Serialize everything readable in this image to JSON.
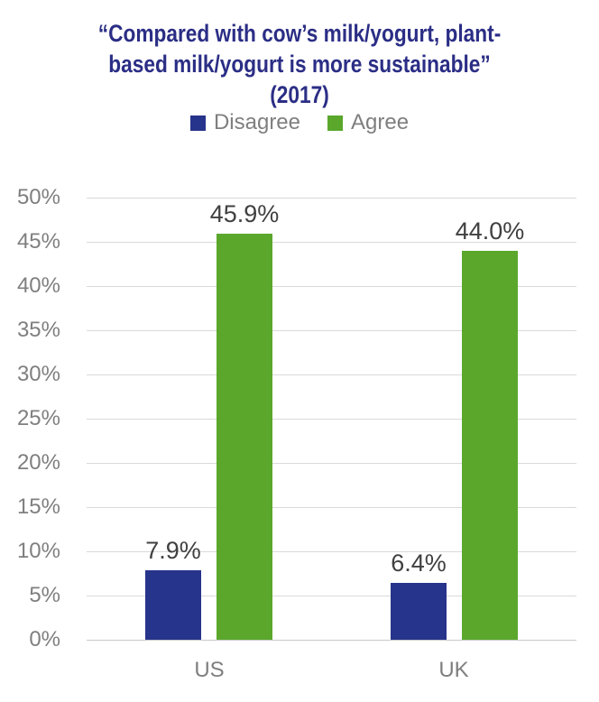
{
  "chart_data": {
    "type": "bar",
    "title": "“Compared with cow’s milk/yogurt, plant-based milk/yogurt is more sustainable” (2017)",
    "title_lines": [
      "“Compared with cow’s milk/yogurt, plant-",
      "based milk/yogurt is more sustainable”",
      "(2017)"
    ],
    "categories": [
      "US",
      "UK"
    ],
    "series": [
      {
        "name": "Disagree",
        "color": "#27348B",
        "values": [
          7.9,
          6.4
        ],
        "labels": [
          "7.9%",
          "6.4%"
        ]
      },
      {
        "name": "Agree",
        "color": "#5AA72C",
        "values": [
          45.9,
          44.0
        ],
        "labels": [
          "45.9%",
          "44.0%"
        ]
      }
    ],
    "yticks": [
      "0%",
      "5%",
      "10%",
      "15%",
      "20%",
      "25%",
      "30%",
      "35%",
      "40%",
      "45%",
      "50%"
    ],
    "ylim": [
      0,
      50
    ],
    "grid": true,
    "legend_position": "top",
    "colors": {
      "title": "#2B2E85",
      "axis_text": "#7F7F7F",
      "data_label": "#404040",
      "gridline": "#D9D9D9"
    }
  }
}
